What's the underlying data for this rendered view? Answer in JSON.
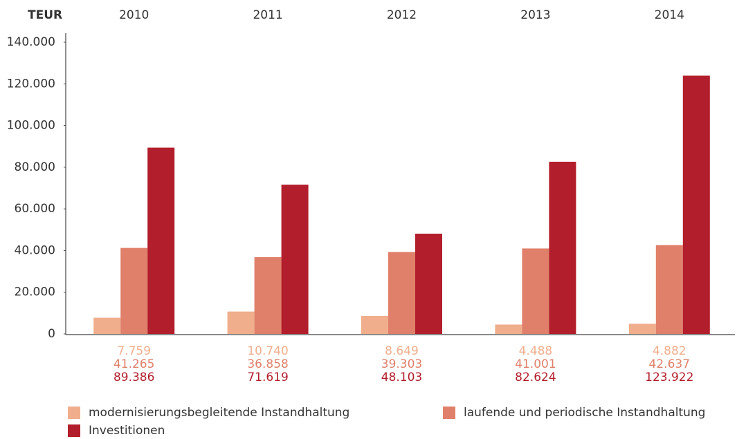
{
  "chart_data": {
    "type": "bar",
    "y_label": "TEUR",
    "categories": [
      "2010",
      "2011",
      "2012",
      "2013",
      "2014"
    ],
    "series": [
      {
        "name": "modernisierungsbegleitende Instandhaltung",
        "color": "#f0ae8c",
        "values": [
          7759,
          10740,
          8649,
          4488,
          4882
        ],
        "value_labels": [
          "7.759",
          "10.740",
          "8.649",
          "4.488",
          "4.882"
        ]
      },
      {
        "name": "laufende und periodische Instandhaltung",
        "color": "#e0806a",
        "values": [
          41265,
          36858,
          39303,
          41001,
          42637
        ],
        "value_labels": [
          "41.265",
          "36.858",
          "39.303",
          "41.001",
          "42.637"
        ]
      },
      {
        "name": "Investitionen",
        "color": "#b21e2b",
        "values": [
          89386,
          71619,
          48103,
          82624,
          123922
        ],
        "value_labels": [
          "89.386",
          "71.619",
          "48.103",
          "82.624",
          "123.922"
        ]
      }
    ],
    "ylim": [
      0,
      140000
    ],
    "yticks": [
      0,
      {
        "value": 20000,
        "label": "20.000"
      },
      {
        "value": 40000,
        "label": "40.000"
      },
      {
        "value": 60000,
        "label": "60.000"
      },
      {
        "value": 80000,
        "label": "80.000"
      },
      {
        "value": 100000,
        "label": "100.000"
      },
      {
        "value": 120000,
        "label": "120.000"
      },
      {
        "value": 140000,
        "label": "140.000"
      }
    ],
    "grid": false
  }
}
